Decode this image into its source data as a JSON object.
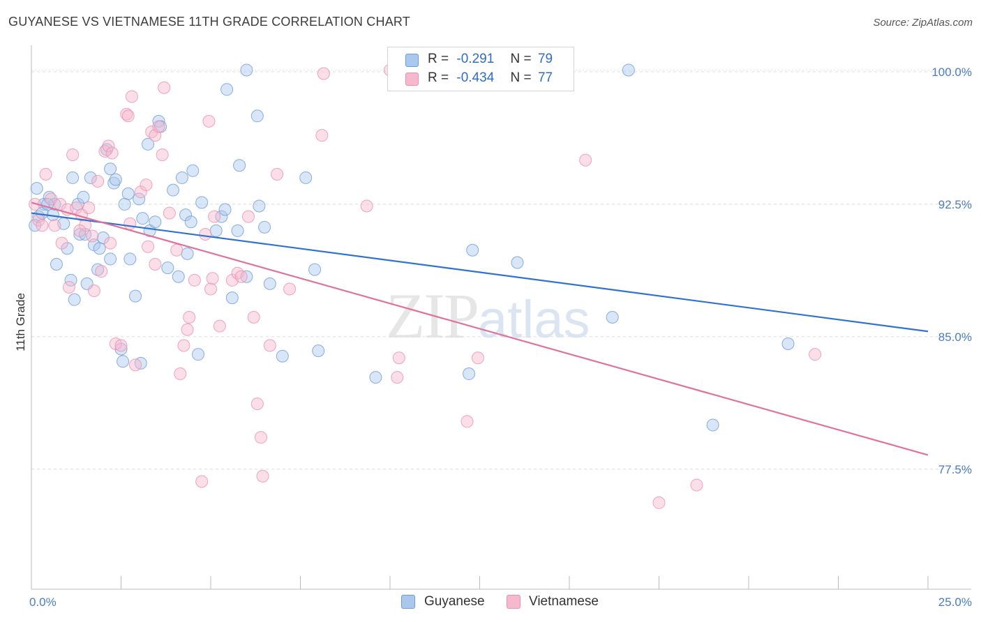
{
  "header": {
    "title": "GUYANESE VS VIETNAMESE 11TH GRADE CORRELATION CHART",
    "source": "Source: ZipAtlas.com"
  },
  "legend": {
    "rows": [
      {
        "r_label": "R =",
        "r_value": "-0.291",
        "n_label": "N =",
        "n_value": "79"
      },
      {
        "r_label": "R =",
        "r_value": "-0.434",
        "n_label": "N =",
        "n_value": "77"
      }
    ]
  },
  "bottom_legend": {
    "guyanese": "Guyanese",
    "vietnamese": "Vietnamese"
  },
  "watermark": {
    "zip": "ZIP",
    "atlas": "atlas"
  },
  "colors": {
    "guyanese_fill": "#aac8ee",
    "guyanese_stroke": "#6b9bd8",
    "guyanese_line": "#2f72d0",
    "vietnamese_fill": "#f6b8cc",
    "vietnamese_stroke": "#ec8eac",
    "vietnamese_line": "#e0729a",
    "tick_text": "#4a7cc4"
  },
  "chart_data": {
    "type": "scatter",
    "title": "GUYANESE VS VIETNAMESE 11TH GRADE CORRELATION CHART",
    "xlabel": "",
    "ylabel": "11th Grade",
    "xlim": [
      0,
      25
    ],
    "ylim": [
      70.7,
      101.5
    ],
    "x_tick_labels": [
      "0.0%",
      "25.0%"
    ],
    "y_ticks": [
      77.5,
      85.0,
      92.5,
      100.0
    ],
    "y_tick_labels": [
      "77.5%",
      "85.0%",
      "92.5%",
      "100.0%"
    ],
    "grid": "horizontal dashed",
    "legend_position": "top-center",
    "series": [
      {
        "name": "Guyanese",
        "r": -0.291,
        "n": 79,
        "trend": {
          "x": [
            0,
            25
          ],
          "y": [
            92.0,
            85.3
          ]
        },
        "points": [
          [
            0.15,
            93.4
          ],
          [
            0.2,
            91.8
          ],
          [
            0.35,
            92.5
          ],
          [
            0.5,
            92.9
          ],
          [
            0.6,
            91.9
          ],
          [
            0.7,
            89.1
          ],
          [
            0.65,
            92.5
          ],
          [
            0.9,
            91.4
          ],
          [
            1.0,
            90.0
          ],
          [
            1.1,
            88.2
          ],
          [
            1.2,
            87.1
          ],
          [
            1.15,
            94.0
          ],
          [
            1.3,
            92.5
          ],
          [
            1.35,
            90.8
          ],
          [
            1.45,
            92.9
          ],
          [
            1.55,
            88.0
          ],
          [
            1.65,
            94.0
          ],
          [
            1.75,
            90.2
          ],
          [
            1.85,
            88.8
          ],
          [
            1.9,
            90.0
          ],
          [
            2.0,
            90.6
          ],
          [
            2.1,
            95.6
          ],
          [
            2.2,
            94.5
          ],
          [
            2.3,
            93.7
          ],
          [
            2.35,
            93.9
          ],
          [
            2.5,
            84.3
          ],
          [
            2.55,
            83.6
          ],
          [
            2.6,
            92.5
          ],
          [
            2.7,
            93.1
          ],
          [
            2.75,
            89.4
          ],
          [
            2.9,
            87.3
          ],
          [
            3.0,
            92.8
          ],
          [
            3.05,
            83.5
          ],
          [
            3.1,
            91.7
          ],
          [
            3.25,
            95.9
          ],
          [
            3.3,
            91.0
          ],
          [
            3.45,
            91.5
          ],
          [
            3.55,
            97.2
          ],
          [
            3.6,
            96.9
          ],
          [
            3.8,
            88.9
          ],
          [
            3.95,
            93.3
          ],
          [
            4.1,
            88.4
          ],
          [
            4.2,
            94.0
          ],
          [
            4.3,
            91.9
          ],
          [
            4.35,
            89.7
          ],
          [
            4.45,
            91.5
          ],
          [
            4.5,
            94.4
          ],
          [
            4.65,
            84.0
          ],
          [
            4.75,
            92.6
          ],
          [
            5.15,
            91.0
          ],
          [
            5.3,
            91.8
          ],
          [
            5.4,
            92.2
          ],
          [
            5.45,
            99.0
          ],
          [
            5.6,
            87.2
          ],
          [
            5.75,
            91.0
          ],
          [
            5.8,
            94.7
          ],
          [
            6.0,
            88.4
          ],
          [
            6.3,
            97.5
          ],
          [
            6.35,
            92.4
          ],
          [
            6.5,
            91.2
          ],
          [
            6.65,
            88.0
          ],
          [
            7.0,
            83.9
          ],
          [
            7.65,
            94.0
          ],
          [
            7.9,
            88.8
          ],
          [
            8.0,
            84.2
          ],
          [
            9.6,
            82.7
          ],
          [
            12.2,
            82.9
          ],
          [
            12.3,
            89.9
          ],
          [
            13.55,
            89.2
          ],
          [
            16.2,
            86.1
          ],
          [
            19.0,
            80.0
          ],
          [
            21.1,
            84.6
          ],
          [
            6.0,
            100.1
          ],
          [
            16.65,
            100.1
          ],
          [
            0.3,
            92.0
          ],
          [
            0.45,
            92.5
          ],
          [
            1.5,
            90.8
          ],
          [
            2.2,
            89.4
          ],
          [
            0.1,
            91.3
          ]
        ]
      },
      {
        "name": "Vietnamese",
        "r": -0.434,
        "n": 77,
        "trend": {
          "x": [
            0,
            25
          ],
          "y": [
            92.6,
            78.3
          ]
        },
        "points": [
          [
            0.1,
            92.5
          ],
          [
            0.2,
            91.6
          ],
          [
            0.3,
            91.3
          ],
          [
            0.4,
            94.2
          ],
          [
            0.55,
            92.8
          ],
          [
            0.65,
            91.3
          ],
          [
            0.8,
            92.5
          ],
          [
            0.85,
            90.3
          ],
          [
            1.0,
            92.2
          ],
          [
            1.05,
            87.8
          ],
          [
            1.15,
            95.3
          ],
          [
            1.25,
            92.3
          ],
          [
            1.4,
            91.9
          ],
          [
            1.5,
            91.3
          ],
          [
            1.6,
            92.3
          ],
          [
            1.7,
            90.7
          ],
          [
            1.75,
            87.6
          ],
          [
            1.85,
            93.8
          ],
          [
            1.95,
            88.7
          ],
          [
            2.05,
            95.5
          ],
          [
            2.15,
            95.8
          ],
          [
            2.2,
            90.3
          ],
          [
            2.25,
            95.4
          ],
          [
            2.35,
            84.6
          ],
          [
            2.5,
            84.5
          ],
          [
            2.65,
            97.6
          ],
          [
            2.7,
            97.5
          ],
          [
            2.75,
            91.4
          ],
          [
            2.8,
            98.6
          ],
          [
            2.9,
            83.4
          ],
          [
            3.05,
            93.2
          ],
          [
            3.2,
            93.6
          ],
          [
            3.25,
            90.1
          ],
          [
            3.35,
            96.6
          ],
          [
            3.45,
            96.4
          ],
          [
            3.45,
            89.1
          ],
          [
            3.55,
            96.9
          ],
          [
            3.65,
            95.3
          ],
          [
            3.7,
            99.1
          ],
          [
            3.85,
            92.0
          ],
          [
            4.05,
            89.9
          ],
          [
            4.15,
            82.9
          ],
          [
            4.25,
            84.5
          ],
          [
            4.35,
            85.4
          ],
          [
            4.4,
            86.1
          ],
          [
            4.55,
            88.2
          ],
          [
            4.75,
            76.8
          ],
          [
            4.85,
            90.8
          ],
          [
            4.95,
            97.2
          ],
          [
            5.0,
            87.7
          ],
          [
            5.05,
            88.3
          ],
          [
            5.1,
            91.8
          ],
          [
            5.25,
            85.6
          ],
          [
            5.6,
            88.2
          ],
          [
            5.75,
            88.6
          ],
          [
            5.85,
            88.4
          ],
          [
            6.05,
            91.8
          ],
          [
            6.2,
            86.1
          ],
          [
            6.3,
            81.2
          ],
          [
            6.4,
            79.3
          ],
          [
            6.45,
            77.1
          ],
          [
            6.65,
            84.5
          ],
          [
            6.85,
            94.2
          ],
          [
            7.2,
            87.7
          ],
          [
            8.1,
            96.4
          ],
          [
            8.15,
            99.9
          ],
          [
            9.35,
            92.4
          ],
          [
            10.0,
            100.1
          ],
          [
            10.25,
            83.8
          ],
          [
            10.2,
            82.7
          ],
          [
            12.15,
            80.2
          ],
          [
            12.45,
            83.8
          ],
          [
            15.45,
            95.0
          ],
          [
            17.5,
            75.6
          ],
          [
            18.55,
            76.6
          ],
          [
            21.85,
            84.0
          ],
          [
            1.35,
            91.0
          ]
        ]
      }
    ]
  }
}
